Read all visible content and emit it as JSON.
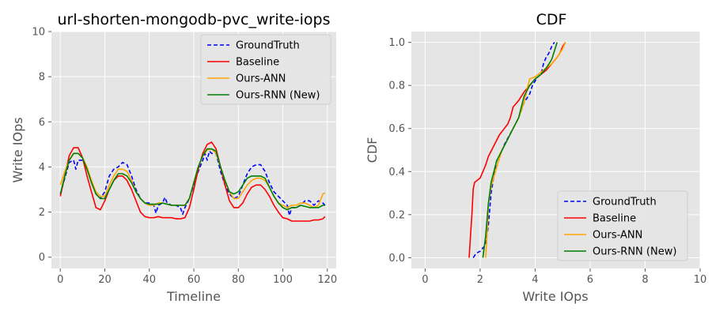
{
  "chart_data": [
    {
      "type": "line",
      "title": "url-shorten-mongodb-pvc_write-iops",
      "xlabel": "Timeline",
      "ylabel": "Write IOps",
      "xlim": [
        -4,
        124
      ],
      "ylim": [
        -0.5,
        10
      ],
      "xticks": [
        0,
        20,
        40,
        60,
        80,
        100,
        120
      ],
      "yticks": [
        0,
        2,
        4,
        6,
        8,
        10
      ],
      "grid": true,
      "legend": "top-right",
      "series": [
        {
          "name": "GroundTruth",
          "color": "#0000ff",
          "dash": "dashed",
          "x": [
            0,
            2,
            4,
            6,
            7,
            8,
            10,
            12,
            14,
            16,
            18,
            20,
            22,
            24,
            26,
            28,
            30,
            32,
            34,
            36,
            38,
            40,
            42,
            43,
            44,
            46,
            47,
            48,
            50,
            52,
            54,
            55,
            56,
            58,
            60,
            62,
            64,
            65,
            66,
            67,
            68,
            70,
            72,
            74,
            76,
            78,
            80,
            82,
            84,
            86,
            88,
            90,
            92,
            94,
            96,
            98,
            100,
            102,
            103,
            104,
            106,
            108,
            110,
            112,
            114,
            116,
            118,
            119
          ],
          "y": [
            2.8,
            3.5,
            4.2,
            4.3,
            3.9,
            4.3,
            4.3,
            3.9,
            3.4,
            2.8,
            2.6,
            2.9,
            3.6,
            3.9,
            4.0,
            4.2,
            4.1,
            3.6,
            3.0,
            2.6,
            2.4,
            2.4,
            2.3,
            1.95,
            2.3,
            2.4,
            2.65,
            2.4,
            2.3,
            2.3,
            2.2,
            1.9,
            2.2,
            2.6,
            3.2,
            3.8,
            4.3,
            4.6,
            4.3,
            4.7,
            4.6,
            4.6,
            3.8,
            3.2,
            2.8,
            2.6,
            2.7,
            3.2,
            3.7,
            4.0,
            4.1,
            4.1,
            3.8,
            3.3,
            2.9,
            2.7,
            2.5,
            2.3,
            1.85,
            2.2,
            2.2,
            2.3,
            2.5,
            2.5,
            2.3,
            2.5,
            2.4,
            2.3
          ]
        },
        {
          "name": "Baseline",
          "color": "#ff0000",
          "dash": "solid",
          "x": [
            0,
            2,
            4,
            6,
            8,
            10,
            12,
            14,
            16,
            18,
            20,
            22,
            24,
            26,
            28,
            30,
            32,
            34,
            36,
            38,
            40,
            42,
            44,
            46,
            48,
            50,
            52,
            54,
            56,
            58,
            60,
            62,
            64,
            66,
            68,
            70,
            72,
            74,
            76,
            78,
            80,
            82,
            84,
            86,
            88,
            90,
            92,
            94,
            96,
            98,
            100,
            102,
            104,
            106,
            108,
            110,
            112,
            114,
            116,
            118,
            119
          ],
          "y": [
            2.7,
            3.6,
            4.5,
            4.85,
            4.85,
            4.4,
            3.6,
            2.9,
            2.2,
            2.1,
            2.5,
            3.0,
            3.4,
            3.6,
            3.6,
            3.4,
            3.0,
            2.5,
            2.0,
            1.8,
            1.75,
            1.75,
            1.8,
            1.75,
            1.75,
            1.75,
            1.7,
            1.7,
            1.75,
            2.2,
            3.0,
            3.9,
            4.6,
            5.0,
            5.1,
            4.8,
            4.0,
            3.2,
            2.5,
            2.2,
            2.2,
            2.4,
            2.8,
            3.1,
            3.2,
            3.2,
            3.0,
            2.7,
            2.3,
            2.0,
            1.75,
            1.7,
            1.6,
            1.6,
            1.6,
            1.6,
            1.6,
            1.65,
            1.65,
            1.7,
            1.8
          ]
        },
        {
          "name": "Ours-ANN",
          "color": "#ffa500",
          "dash": "solid",
          "x": [
            0,
            2,
            4,
            6,
            8,
            10,
            12,
            14,
            16,
            18,
            20,
            22,
            24,
            26,
            28,
            30,
            32,
            34,
            36,
            38,
            40,
            42,
            44,
            46,
            48,
            50,
            52,
            54,
            56,
            58,
            60,
            62,
            64,
            66,
            68,
            70,
            72,
            74,
            76,
            78,
            80,
            82,
            84,
            86,
            88,
            90,
            92,
            94,
            96,
            98,
            100,
            102,
            104,
            106,
            108,
            110,
            112,
            114,
            116,
            118,
            119
          ],
          "y": [
            3.2,
            3.8,
            4.3,
            4.6,
            4.6,
            4.4,
            4.0,
            3.4,
            2.9,
            2.7,
            2.7,
            3.2,
            3.6,
            3.9,
            3.9,
            3.8,
            3.4,
            2.9,
            2.6,
            2.4,
            2.3,
            2.3,
            2.4,
            2.4,
            2.35,
            2.3,
            2.3,
            2.3,
            2.3,
            2.6,
            3.3,
            4.0,
            4.5,
            4.75,
            4.8,
            4.6,
            4.0,
            3.4,
            2.9,
            2.6,
            2.6,
            2.9,
            3.2,
            3.4,
            3.5,
            3.5,
            3.4,
            3.1,
            2.7,
            2.4,
            2.3,
            2.2,
            2.3,
            2.3,
            2.4,
            2.4,
            2.3,
            2.2,
            2.3,
            2.8,
            2.85
          ]
        },
        {
          "name": "Ours-RNN (New)",
          "color": "#008000",
          "dash": "solid",
          "x": [
            0,
            2,
            4,
            6,
            8,
            10,
            12,
            14,
            16,
            18,
            20,
            22,
            24,
            26,
            28,
            30,
            32,
            34,
            36,
            38,
            40,
            42,
            44,
            46,
            48,
            50,
            52,
            54,
            56,
            58,
            60,
            62,
            64,
            66,
            68,
            70,
            72,
            74,
            76,
            78,
            80,
            82,
            84,
            86,
            88,
            90,
            92,
            94,
            96,
            98,
            100,
            102,
            104,
            106,
            108,
            110,
            112,
            114,
            116,
            118,
            119
          ],
          "y": [
            2.8,
            3.6,
            4.3,
            4.6,
            4.6,
            4.4,
            3.9,
            3.3,
            2.8,
            2.6,
            2.6,
            3.0,
            3.4,
            3.7,
            3.7,
            3.6,
            3.3,
            2.9,
            2.6,
            2.4,
            2.35,
            2.35,
            2.35,
            2.4,
            2.35,
            2.3,
            2.3,
            2.3,
            2.3,
            2.6,
            3.3,
            4.0,
            4.5,
            4.8,
            4.8,
            4.7,
            4.0,
            3.4,
            2.9,
            2.8,
            2.9,
            3.2,
            3.5,
            3.6,
            3.6,
            3.6,
            3.5,
            3.1,
            2.7,
            2.4,
            2.2,
            2.1,
            2.2,
            2.2,
            2.3,
            2.25,
            2.2,
            2.2,
            2.2,
            2.3,
            2.3
          ]
        }
      ]
    },
    {
      "type": "line",
      "title": "CDF",
      "xlabel": "Write IOps",
      "ylabel": "CDF",
      "xlim": [
        -0.5,
        10
      ],
      "ylim": [
        -0.05,
        1.05
      ],
      "xticks": [
        0,
        2,
        4,
        6,
        8,
        10
      ],
      "yticks": [
        0.0,
        0.2,
        0.4,
        0.6,
        0.8,
        1.0
      ],
      "grid": true,
      "legend": "bottom-right",
      "series": [
        {
          "name": "GroundTruth",
          "color": "#0000ff",
          "dash": "dashed",
          "x": [
            1.75,
            1.85,
            2.0,
            2.2,
            2.3,
            2.4,
            2.5,
            2.6,
            2.7,
            2.9,
            3.2,
            3.4,
            3.6,
            3.8,
            3.9,
            4.0,
            4.1,
            4.2,
            4.25,
            4.3,
            4.4,
            4.5,
            4.6,
            4.7
          ],
          "y": [
            0.0,
            0.02,
            0.03,
            0.06,
            0.15,
            0.3,
            0.38,
            0.45,
            0.47,
            0.53,
            0.6,
            0.65,
            0.72,
            0.76,
            0.8,
            0.82,
            0.84,
            0.85,
            0.87,
            0.9,
            0.93,
            0.95,
            0.98,
            1.0
          ]
        },
        {
          "name": "Baseline",
          "color": "#ff0000",
          "dash": "solid",
          "x": [
            1.6,
            1.65,
            1.7,
            1.75,
            1.8,
            2.0,
            2.1,
            2.2,
            2.3,
            2.5,
            2.7,
            3.0,
            3.1,
            3.2,
            3.4,
            3.6,
            3.8,
            4.0,
            4.2,
            4.4,
            4.6,
            4.8,
            4.9,
            5.0,
            5.1
          ],
          "y": [
            0.0,
            0.1,
            0.2,
            0.32,
            0.35,
            0.37,
            0.4,
            0.43,
            0.47,
            0.52,
            0.57,
            0.62,
            0.65,
            0.7,
            0.73,
            0.77,
            0.8,
            0.83,
            0.85,
            0.87,
            0.9,
            0.93,
            0.95,
            0.98,
            1.0
          ]
        },
        {
          "name": "Ours-ANN",
          "color": "#ffa500",
          "dash": "solid",
          "x": [
            2.2,
            2.25,
            2.3,
            2.4,
            2.6,
            2.8,
            3.0,
            3.2,
            3.4,
            3.6,
            3.7,
            3.8,
            4.0,
            4.2,
            4.4,
            4.6,
            4.8,
            5.0,
            5.1
          ],
          "y": [
            0.0,
            0.1,
            0.25,
            0.33,
            0.42,
            0.5,
            0.55,
            0.6,
            0.65,
            0.72,
            0.78,
            0.83,
            0.84,
            0.86,
            0.88,
            0.9,
            0.93,
            0.97,
            1.0
          ]
        },
        {
          "name": "Ours-RNN (New)",
          "color": "#008000",
          "dash": "solid",
          "x": [
            2.1,
            2.2,
            2.3,
            2.4,
            2.6,
            2.8,
            3.0,
            3.2,
            3.4,
            3.5,
            3.6,
            3.8,
            4.0,
            4.2,
            4.4,
            4.6,
            4.7,
            4.8
          ],
          "y": [
            0.0,
            0.1,
            0.25,
            0.35,
            0.45,
            0.5,
            0.55,
            0.6,
            0.65,
            0.7,
            0.75,
            0.8,
            0.83,
            0.85,
            0.88,
            0.92,
            0.96,
            1.0
          ]
        }
      ]
    }
  ]
}
